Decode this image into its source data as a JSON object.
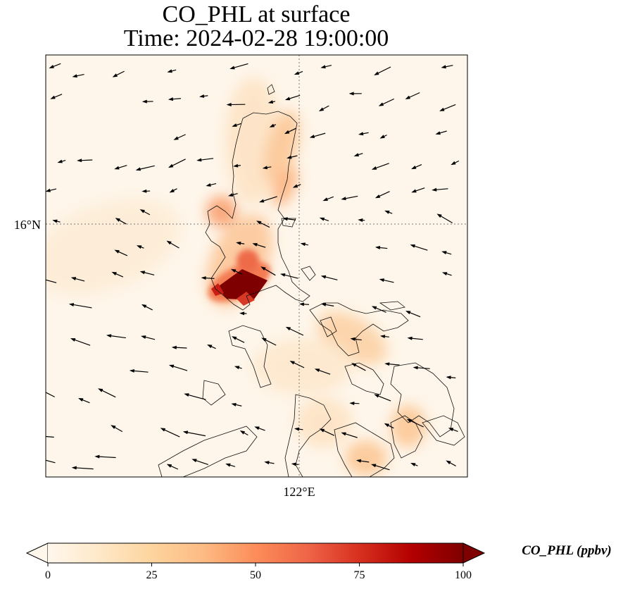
{
  "title": {
    "line1": "CO_PHL at surface",
    "line2": "Time: 2024-02-28 19:00:00"
  },
  "axes": {
    "lat_label": "16°N",
    "lon_label": "122°E"
  },
  "colorbar": {
    "label": "CO_PHL (ppbv)",
    "ticks": [
      "0",
      "25",
      "50",
      "75",
      "100"
    ],
    "range": [
      0,
      100
    ],
    "colormap": "OrRd",
    "extend": "both",
    "colors": [
      "#fff7ec",
      "#fee8c8",
      "#fdd49e",
      "#fdbb84",
      "#fc8d59",
      "#ef6548",
      "#d7301f",
      "#b30000",
      "#7f0000"
    ]
  },
  "map": {
    "gridlines": "dotted",
    "coastline_color": "#000000",
    "vectors": "wind"
  }
}
